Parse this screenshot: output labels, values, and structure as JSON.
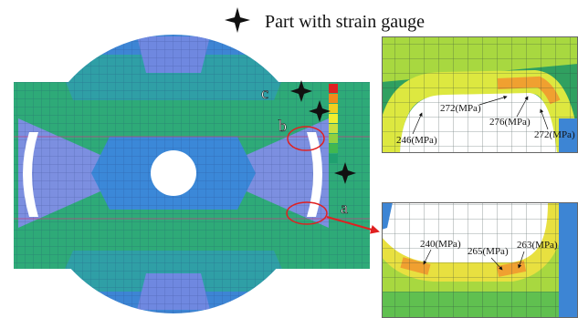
{
  "legend": {
    "label": "Part with strain gauge"
  },
  "locations": {
    "a": "a",
    "b": "b",
    "c": "c"
  },
  "top_inset": {
    "callouts": [
      "246(MPa)",
      "272(MPa)",
      "276(MPa)",
      "272(MPa)"
    ]
  },
  "bottom_inset": {
    "callouts": [
      "240(MPa)",
      "265(MPa)",
      "263(MPa)"
    ]
  }
}
